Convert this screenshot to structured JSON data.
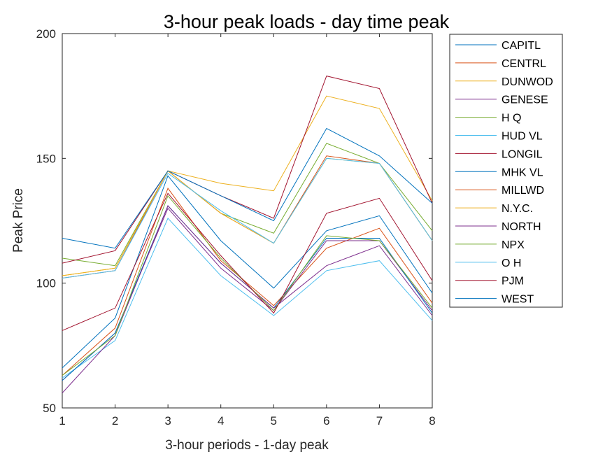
{
  "chart_data": {
    "type": "line",
    "title": "3-hour peak loads - day time peak",
    "xlabel": "3-hour periods - 1-day peak",
    "ylabel": "Peak Price",
    "xlim": [
      1,
      8
    ],
    "ylim": [
      50,
      200
    ],
    "x": [
      1,
      2,
      3,
      4,
      5,
      6,
      7,
      8
    ],
    "xticks": [
      "1",
      "2",
      "3",
      "4",
      "5",
      "6",
      "7",
      "8"
    ],
    "yticks": [
      "50",
      "100",
      "150",
      "200"
    ],
    "legend_position": "outside-right",
    "series": [
      {
        "name": "CAPITL",
        "color": "#0072BD",
        "values": [
          66,
          86,
          143,
          117,
          98,
          121,
          127,
          96
        ]
      },
      {
        "name": "CENTRL",
        "color": "#D95319",
        "values": [
          63,
          82,
          138,
          109,
          91,
          114,
          122,
          92
        ]
      },
      {
        "name": "DUNWOD",
        "color": "#EDB120",
        "values": [
          103,
          106,
          145,
          140,
          137,
          175,
          170,
          133
        ]
      },
      {
        "name": "GENESE",
        "color": "#7E2F8E",
        "values": [
          61,
          80,
          130,
          106,
          89,
          117,
          117,
          89
        ]
      },
      {
        "name": "H Q",
        "color": "#77AC30",
        "values": [
          110,
          107,
          145,
          128,
          120,
          156,
          148,
          121
        ]
      },
      {
        "name": "HUD VL",
        "color": "#4DBEEE",
        "values": [
          62,
          77,
          126,
          103,
          87,
          105,
          109,
          85
        ]
      },
      {
        "name": "LONGIL",
        "color": "#A2142F",
        "values": [
          108,
          113,
          145,
          135,
          126,
          183,
          178,
          132
        ]
      },
      {
        "name": "MHK VL",
        "color": "#0072BD",
        "values": [
          61,
          80,
          131,
          108,
          90,
          118,
          118,
          88
        ]
      },
      {
        "name": "MILLWD",
        "color": "#D95319",
        "values": [
          102,
          105,
          145,
          128,
          116,
          151,
          148,
          117
        ]
      },
      {
        "name": "N.Y.C.",
        "color": "#EDB120",
        "values": [
          103,
          106,
          145,
          128,
          116,
          150,
          148,
          117
        ]
      },
      {
        "name": "NORTH",
        "color": "#7E2F8E",
        "values": [
          56,
          79,
          131,
          108,
          90,
          107,
          115,
          87
        ]
      },
      {
        "name": "NPX",
        "color": "#77AC30",
        "values": [
          63,
          79,
          135,
          110,
          89,
          119,
          117,
          90
        ]
      },
      {
        "name": "O H",
        "color": "#4DBEEE",
        "values": [
          102,
          105,
          144,
          129,
          116,
          150,
          148,
          117
        ]
      },
      {
        "name": "PJM",
        "color": "#A2142F",
        "values": [
          81,
          90,
          136,
          111,
          88,
          128,
          134,
          101
        ]
      },
      {
        "name": "WEST",
        "color": "#0072BD",
        "values": [
          118,
          114,
          145,
          135,
          125,
          162,
          151,
          132
        ]
      }
    ]
  }
}
